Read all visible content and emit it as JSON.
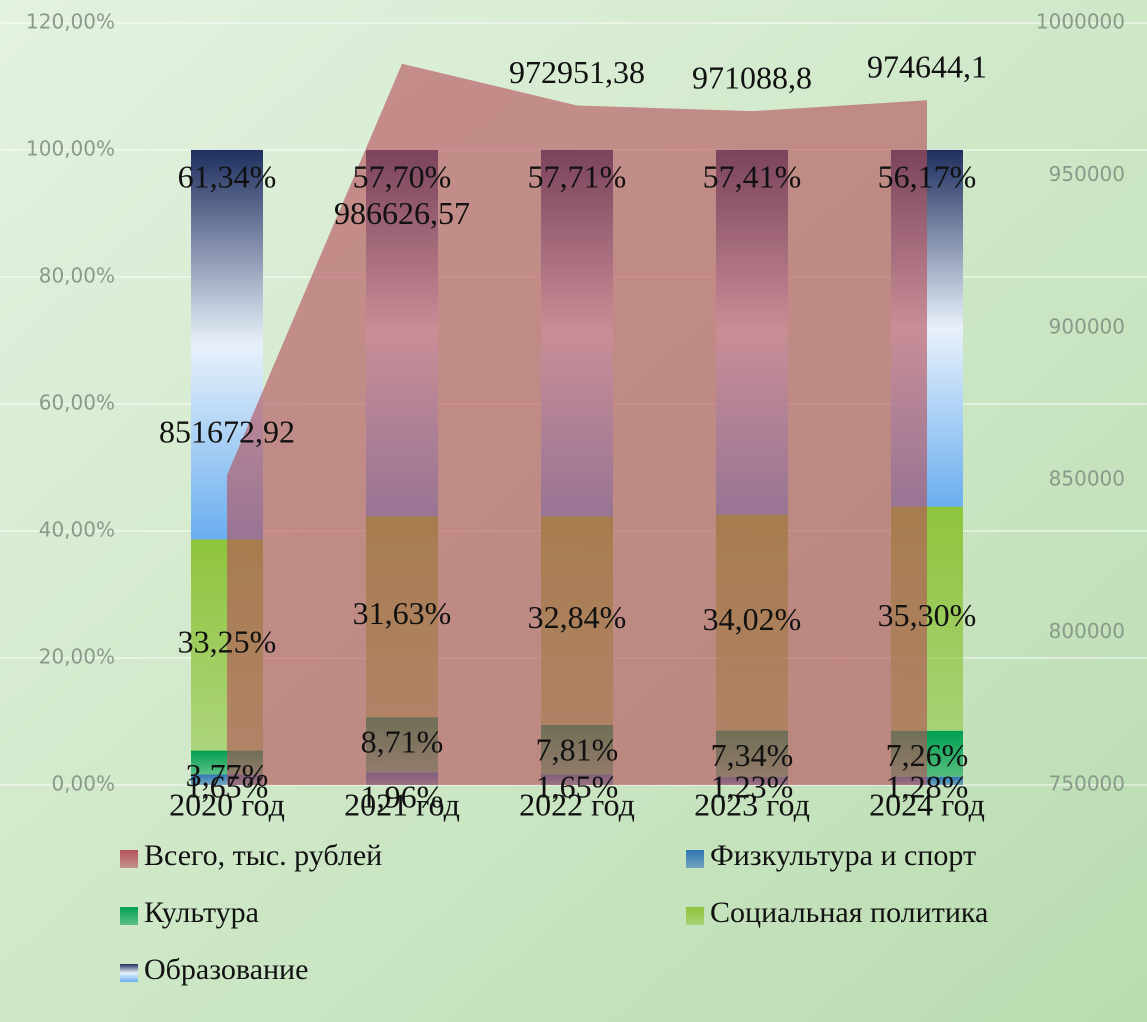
{
  "chart_data": {
    "type": "stacked_bar_area",
    "categories": [
      "2020 год",
      "2021 год",
      "2022 год",
      "2023 год",
      "2024 год"
    ],
    "ylim": [
      0,
      120
    ],
    "yticks": [
      {
        "value": 0,
        "label": "0,00%"
      },
      {
        "value": 20,
        "label": "20,00%"
      },
      {
        "value": 40,
        "label": "40,00%"
      },
      {
        "value": 60,
        "label": "60,00%"
      },
      {
        "value": 80,
        "label": "80,00%"
      },
      {
        "value": 100,
        "label": "100,00%"
      },
      {
        "value": 120,
        "label": "120,00%"
      }
    ],
    "y2lim": [
      750000,
      1000000
    ],
    "y2ticks": [
      750000,
      800000,
      850000,
      900000,
      950000,
      1000000
    ],
    "grid": true,
    "series": [
      {
        "name": "Всего, тыс. рублей",
        "color": "#b5505a",
        "axis": "y2",
        "values": [
          851672.92,
          986626.57,
          972951.38,
          971088.8,
          974644.1
        ],
        "value_labels": [
          "851672,92",
          "986626,57",
          "972951,38",
          "971088,8",
          "974644,1"
        ]
      },
      {
        "name": "Физкультура и спорт",
        "color": "#2e75b6",
        "values": [
          1.65,
          1.96,
          1.65,
          1.23,
          1.28
        ],
        "value_labels": [
          "1,65%",
          "1,96%",
          "1,65%",
          "1,23%",
          "1,28%"
        ]
      },
      {
        "name": "Культура",
        "color": "#00a050",
        "values": [
          3.77,
          8.71,
          7.81,
          7.34,
          7.26
        ],
        "value_labels": [
          "3,77%",
          "8,71%",
          "7,81%",
          "7,34%",
          "7,26%"
        ]
      },
      {
        "name": "Социальная политика",
        "color": "#8fc43c",
        "values": [
          33.25,
          31.63,
          32.84,
          34.02,
          35.3
        ],
        "value_labels": [
          "33,25%",
          "31,63%",
          "32,84%",
          "34,02%",
          "35,30%"
        ]
      },
      {
        "name": "Образование",
        "color": "#1f2f5f",
        "values": [
          61.34,
          57.7,
          57.71,
          57.41,
          56.17
        ],
        "value_labels": [
          "61,34%",
          "57,70%",
          "57,71%",
          "57,41%",
          "56,17%"
        ]
      }
    ]
  }
}
